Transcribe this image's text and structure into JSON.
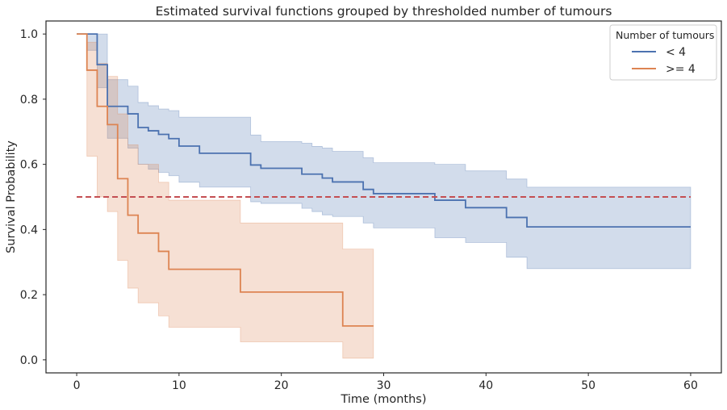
{
  "chart_data": {
    "type": "line",
    "subtype": "kaplan-meier step with confidence bands",
    "title": "Estimated survival functions grouped by thresholded number of tumours",
    "xlabel": "Time (months)",
    "ylabel": "Survival Probability",
    "xlim": [
      -3,
      63
    ],
    "ylim": [
      -0.04,
      1.04
    ],
    "xticks": [
      0,
      10,
      20,
      30,
      40,
      50,
      60
    ],
    "xtick_labels": [
      "0",
      "10",
      "20",
      "30",
      "40",
      "50",
      "60"
    ],
    "yticks": [
      0.0,
      0.2,
      0.4,
      0.6,
      0.8,
      1.0
    ],
    "ytick_labels": [
      "0.0",
      "0.2",
      "0.4",
      "0.6",
      "0.8",
      "1.0"
    ],
    "grid": false,
    "legend": {
      "title": "Number of tumours",
      "placement": "top-right"
    },
    "reference_line": {
      "y": 0.5,
      "style": "dashed",
      "color": "#c44e52"
    },
    "series": [
      {
        "name": "< 4",
        "color": "#4c72b0",
        "band_color": "#4c72b0",
        "steps": [
          [
            0,
            1.0
          ],
          [
            2,
            0.99
          ],
          [
            2,
            0.906
          ],
          [
            3,
            0.778
          ],
          [
            5,
            0.755
          ],
          [
            6,
            0.713
          ],
          [
            7,
            0.703
          ],
          [
            8,
            0.692
          ],
          [
            9,
            0.679
          ],
          [
            10,
            0.656
          ],
          [
            12,
            0.634
          ],
          [
            17,
            0.598
          ],
          [
            18,
            0.588
          ],
          [
            22,
            0.57
          ],
          [
            24,
            0.558
          ],
          [
            25,
            0.546
          ],
          [
            28,
            0.523
          ],
          [
            29,
            0.51
          ],
          [
            35,
            0.49
          ],
          [
            38,
            0.467
          ],
          [
            42,
            0.437
          ],
          [
            44,
            0.408
          ],
          [
            60,
            0.408
          ]
        ],
        "ci_lower": [
          [
            1,
            0.95
          ],
          [
            2,
            0.835
          ],
          [
            3,
            0.68
          ],
          [
            5,
            0.65
          ],
          [
            6,
            0.6
          ],
          [
            7,
            0.585
          ],
          [
            8,
            0.575
          ],
          [
            9,
            0.565
          ],
          [
            10,
            0.545
          ],
          [
            12,
            0.53
          ],
          [
            17,
            0.485
          ],
          [
            18,
            0.48
          ],
          [
            22,
            0.465
          ],
          [
            23,
            0.455
          ],
          [
            24,
            0.445
          ],
          [
            25,
            0.44
          ],
          [
            28,
            0.42
          ],
          [
            29,
            0.405
          ],
          [
            35,
            0.375
          ],
          [
            38,
            0.36
          ],
          [
            42,
            0.315
          ],
          [
            44,
            0.28
          ],
          [
            60,
            0.28
          ]
        ],
        "ci_upper": [
          [
            1,
            1.0
          ],
          [
            3,
            0.86
          ],
          [
            5,
            0.84
          ],
          [
            6,
            0.79
          ],
          [
            7,
            0.78
          ],
          [
            8,
            0.77
          ],
          [
            9,
            0.765
          ],
          [
            10,
            0.745
          ],
          [
            12,
            0.745
          ],
          [
            17,
            0.69
          ],
          [
            18,
            0.67
          ],
          [
            22,
            0.665
          ],
          [
            23,
            0.655
          ],
          [
            24,
            0.65
          ],
          [
            25,
            0.64
          ],
          [
            28,
            0.62
          ],
          [
            29,
            0.605
          ],
          [
            35,
            0.6
          ],
          [
            38,
            0.58
          ],
          [
            42,
            0.555
          ],
          [
            44,
            0.53
          ],
          [
            60,
            0.53
          ]
        ]
      },
      {
        "name": ">= 4",
        "color": "#dd8452",
        "band_color": "#dd8452",
        "steps": [
          [
            0,
            1.0
          ],
          [
            1,
            0.889
          ],
          [
            2,
            0.778
          ],
          [
            3,
            0.722
          ],
          [
            4,
            0.556
          ],
          [
            5,
            0.444
          ],
          [
            6,
            0.389
          ],
          [
            8,
            0.333
          ],
          [
            9,
            0.278
          ],
          [
            16,
            0.208
          ],
          [
            26,
            0.104
          ],
          [
            29,
            0.104
          ]
        ],
        "ci_lower": [
          [
            1,
            0.625
          ],
          [
            2,
            0.5
          ],
          [
            3,
            0.455
          ],
          [
            4,
            0.305
          ],
          [
            5,
            0.22
          ],
          [
            6,
            0.175
          ],
          [
            8,
            0.135
          ],
          [
            9,
            0.1
          ],
          [
            16,
            0.055
          ],
          [
            26,
            0.005
          ],
          [
            29,
            0.005
          ]
        ],
        "ci_upper": [
          [
            1,
            0.975
          ],
          [
            2,
            0.91
          ],
          [
            3,
            0.87
          ],
          [
            4,
            0.755
          ],
          [
            5,
            0.66
          ],
          [
            6,
            0.6
          ],
          [
            8,
            0.545
          ],
          [
            9,
            0.49
          ],
          [
            16,
            0.42
          ],
          [
            26,
            0.34
          ],
          [
            29,
            0.34
          ]
        ]
      }
    ]
  }
}
